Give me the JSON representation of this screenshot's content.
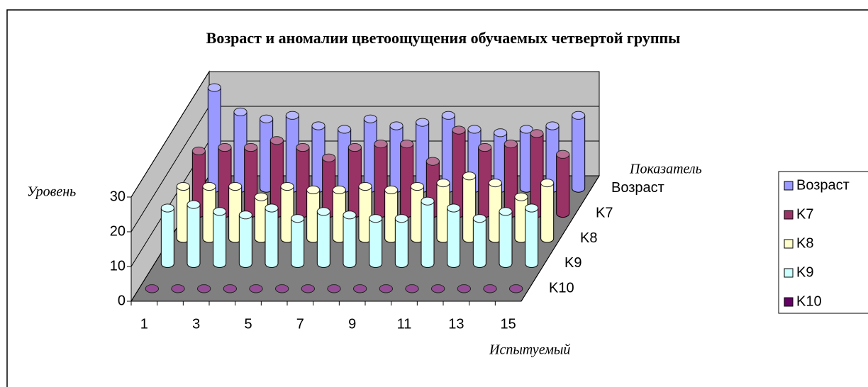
{
  "chart_data": {
    "type": "bar3d",
    "title": "Возраст и аномалии цветоощущения обучаемых четвертой группы",
    "x_label": "Испытуемый",
    "y_label": "Уровень",
    "z_label": "Показатель",
    "categories": [
      "1",
      null,
      "3",
      null,
      "5",
      null,
      "7",
      null,
      "9",
      null,
      "11",
      null,
      "13",
      null,
      "15"
    ],
    "series": [
      {
        "name": "Возраст",
        "color": "#9999ff",
        "values": [
          29,
          22,
          20,
          21,
          18,
          17,
          20,
          18,
          19,
          21,
          17,
          16,
          17,
          18,
          21
        ]
      },
      {
        "name": "K7",
        "color": "#993366",
        "values": [
          18,
          19,
          19,
          21,
          19,
          16,
          19,
          20,
          20,
          15,
          24,
          19,
          20,
          23,
          17
        ]
      },
      {
        "name": "K8",
        "color": "#ffffcc",
        "values": [
          15,
          15,
          15,
          12,
          15,
          14,
          14,
          15,
          14,
          15,
          16,
          18,
          16,
          12,
          16
        ]
      },
      {
        "name": "K9",
        "color": "#ccffff",
        "values": [
          16,
          17,
          15,
          14,
          16,
          13,
          15,
          14,
          13,
          13,
          18,
          16,
          13,
          15,
          16
        ]
      },
      {
        "name": "K10",
        "color": "#660066",
        "values": [
          0,
          0,
          0,
          0,
          0,
          0,
          0,
          0,
          0,
          0,
          0,
          0,
          0,
          0,
          0
        ]
      }
    ],
    "ylim": [
      0,
      30
    ],
    "yticks": [
      0,
      10,
      20,
      30
    ],
    "grid": true,
    "legend": "right"
  }
}
